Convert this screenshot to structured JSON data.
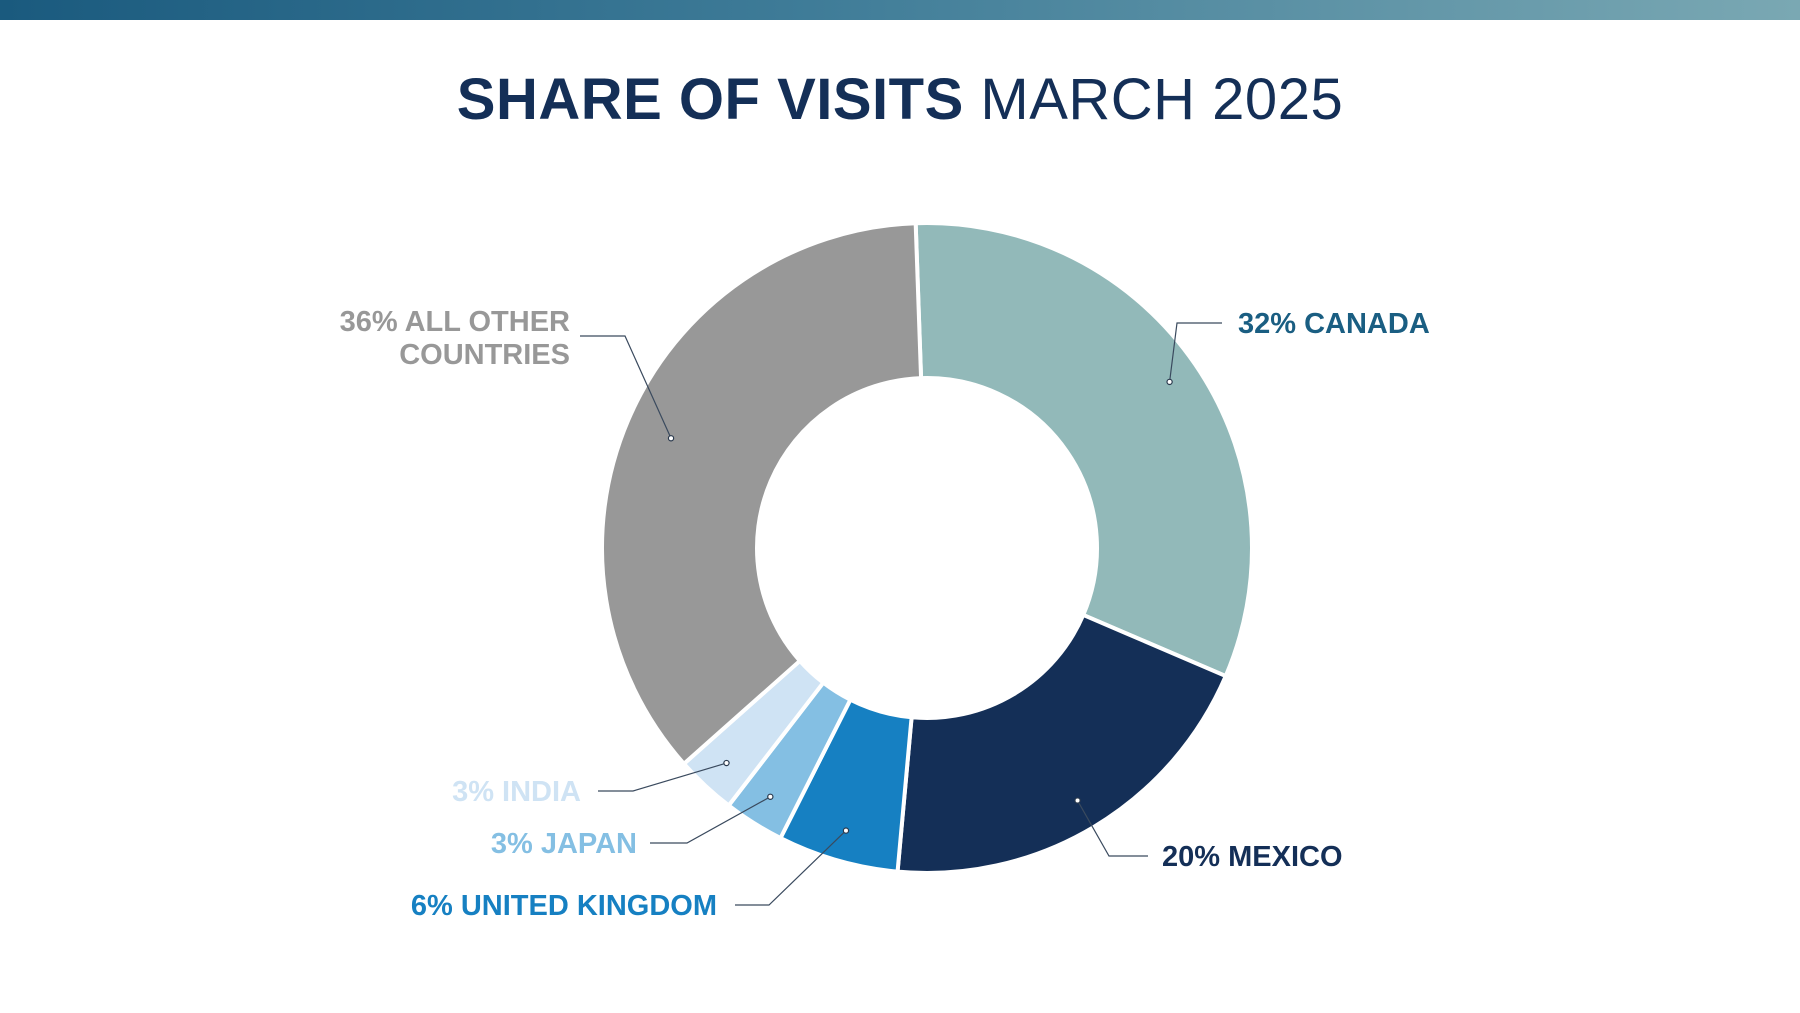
{
  "title": {
    "bold": "SHARE OF VISITS",
    "light": "MARCH 2025"
  },
  "colors": {
    "top_bar_start": "#1a5a7e",
    "top_bar_end": "#7aa8b3",
    "title": "#142f57"
  },
  "chart_data": {
    "type": "pie",
    "style": "donut",
    "slices": [
      {
        "label": "32% CANADA",
        "value": 32,
        "color": "#92b9b9",
        "label_color": "#1a5e82"
      },
      {
        "label": "20% MEXICO",
        "value": 20,
        "color": "#142f57",
        "label_color": "#142f57"
      },
      {
        "label": "6% UNITED KINGDOM",
        "value": 6,
        "color": "#1680c2",
        "label_color": "#1680c2"
      },
      {
        "label": "3% JAPAN",
        "value": 3,
        "color": "#84bfe3",
        "label_color": "#84bfe3"
      },
      {
        "label": "3% INDIA",
        "value": 3,
        "color": "#cfe3f4",
        "label_color": "#cfe3f4"
      },
      {
        "label": "36% ALL OTHER COUNTRIES",
        "lines": [
          "36% ALL OTHER",
          "COUNTRIES"
        ],
        "value": 36,
        "color": "#989898",
        "label_color": "#989898"
      }
    ]
  }
}
